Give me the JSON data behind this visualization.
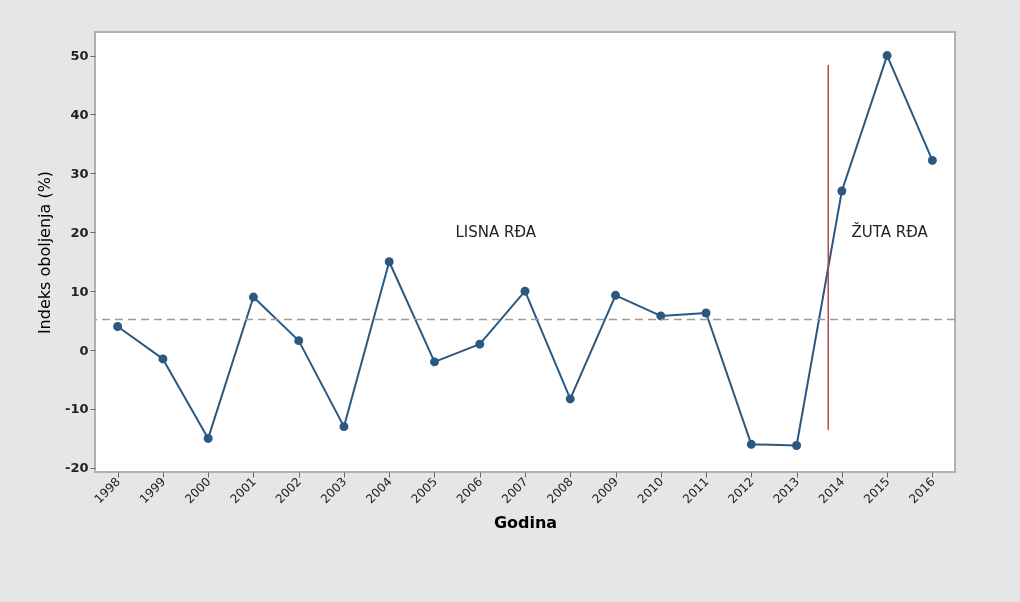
{
  "chart_data": {
    "type": "line",
    "xlabel": "Godina",
    "ylabel": "Indeks oboljenja (%)",
    "x": [
      1998,
      1999,
      2000,
      2001,
      2002,
      2003,
      2004,
      2005,
      2006,
      2007,
      2008,
      2009,
      2010,
      2011,
      2012,
      2013,
      2014,
      2015,
      2016
    ],
    "xlim": [
      1997.5,
      2016.5
    ],
    "xticks": [
      1998,
      1999,
      2000,
      2001,
      2002,
      2003,
      2004,
      2005,
      2006,
      2007,
      2008,
      2009,
      2010,
      2011,
      2012,
      2013,
      2014,
      2015,
      2016
    ],
    "ylim": [
      -20.7,
      54
    ],
    "yticks": [
      -20,
      -10,
      0,
      10,
      20,
      30,
      40,
      50
    ],
    "series": [
      {
        "color": "#2a5880",
        "marker": "circle",
        "values": [
          4,
          -1.5,
          -15,
          9,
          1.6,
          -13,
          15,
          -2,
          1,
          10,
          -8.3,
          9.3,
          5.8,
          6.3,
          -16,
          -16.2,
          27,
          50,
          32.2
        ]
      },
      {
        "type": "line",
        "color": "#b04a48",
        "marker": "none",
        "x": [
          2013.7,
          2013.7
        ],
        "values": [
          -13.5,
          48.3
        ]
      }
    ],
    "ref_lines": [
      {
        "axis": "y",
        "value": 5.2,
        "color": "#9a9a9a",
        "line_style": "dashed"
      }
    ],
    "annotations": [
      "LISNA RĐA",
      "ŽUTA RĐA"
    ],
    "grid": false
  }
}
